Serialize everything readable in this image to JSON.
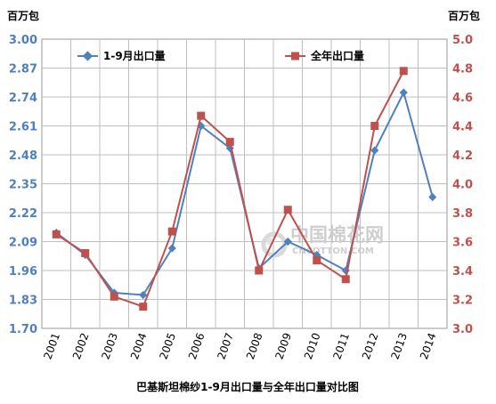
{
  "chart_data": {
    "type": "line",
    "title": "巴基斯坦棉纱1-9月出口量与全年出口量对比图",
    "y_left_unit": "百万包",
    "y_right_unit": "百万包",
    "categories": [
      "2001",
      "2002",
      "2003",
      "2004",
      "2005",
      "2006",
      "2007",
      "2008",
      "2009",
      "2010",
      "2011",
      "2012",
      "2013",
      "2014"
    ],
    "y_left_ticks": [
      "1.70",
      "1.83",
      "1.96",
      "2.09",
      "2.22",
      "2.35",
      "2.48",
      "2.61",
      "2.74",
      "2.87",
      "3.00"
    ],
    "y_right_ticks": [
      "3.0",
      "3.2",
      "3.4",
      "3.6",
      "3.8",
      "4.0",
      "4.2",
      "4.4",
      "4.6",
      "4.8",
      "5.0"
    ],
    "y_left_range": [
      1.7,
      3.0
    ],
    "y_right_range": [
      3.0,
      5.0
    ],
    "legend_placement": "top",
    "grid": true,
    "series": [
      {
        "name": "1-9月出口量",
        "axis": "left",
        "color": "#4f81bd",
        "marker": "diamond",
        "values": [
          2.13,
          2.03,
          1.86,
          1.85,
          2.06,
          2.61,
          2.51,
          1.97,
          2.09,
          2.03,
          1.96,
          2.5,
          2.76,
          2.29
        ]
      },
      {
        "name": "全年出口量",
        "axis": "right",
        "color": "#c0504d",
        "marker": "square",
        "values": [
          3.65,
          3.52,
          3.22,
          3.15,
          3.67,
          4.47,
          4.29,
          3.4,
          3.82,
          3.47,
          3.34,
          4.4,
          4.78,
          null
        ]
      }
    ]
  },
  "watermark": {
    "text_cn": "中国棉花网",
    "text_en": "CNCOTTON.COM"
  }
}
